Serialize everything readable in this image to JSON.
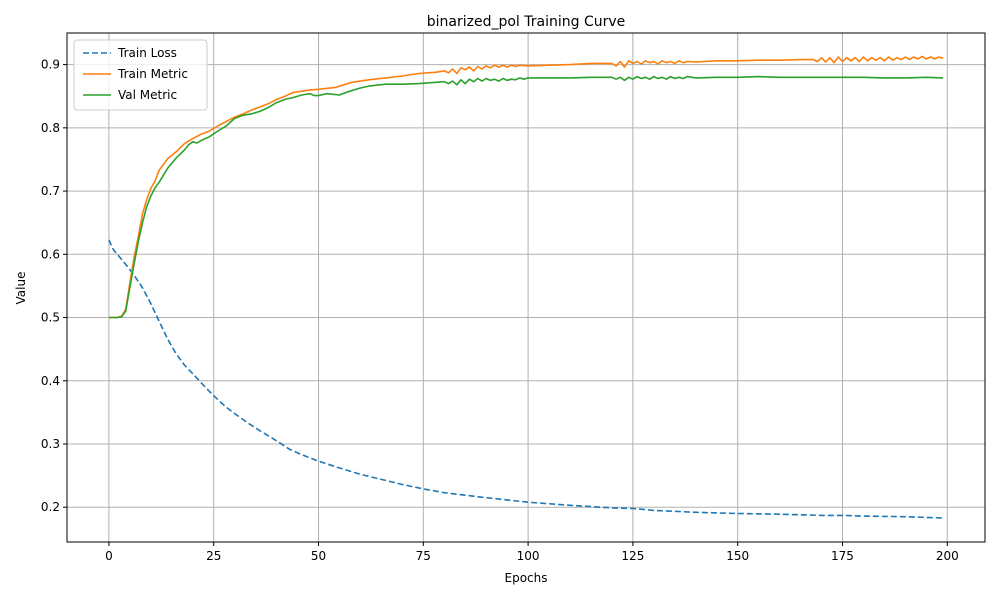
{
  "chart_data": {
    "type": "line",
    "title": "binarized_pol Training Curve",
    "xlabel": "Epochs",
    "ylabel": "Value",
    "xlim": [
      -10,
      209
    ],
    "ylim": [
      0.145,
      0.95
    ],
    "xticks": [
      0,
      25,
      50,
      75,
      100,
      125,
      150,
      175,
      200
    ],
    "yticks": [
      0.2,
      0.3,
      0.4,
      0.5,
      0.6,
      0.7,
      0.8,
      0.9
    ],
    "grid": true,
    "legend_position": "top-left",
    "series": [
      {
        "name": "Train Loss",
        "color": "#1f77b4",
        "dash": "dashed",
        "x": [
          0,
          1,
          2,
          4,
          6,
          8,
          10,
          12,
          14,
          16,
          18,
          20,
          22,
          24,
          26,
          28,
          30,
          33,
          36,
          40,
          43,
          46,
          50,
          55,
          60,
          65,
          70,
          75,
          80,
          85,
          90,
          100,
          110,
          120,
          125,
          130,
          140,
          150,
          160,
          170,
          175,
          180,
          190,
          199
        ],
        "y": [
          0.623,
          0.608,
          0.6,
          0.584,
          0.567,
          0.547,
          0.522,
          0.494,
          0.466,
          0.443,
          0.425,
          0.411,
          0.397,
          0.383,
          0.37,
          0.358,
          0.348,
          0.334,
          0.321,
          0.305,
          0.292,
          0.283,
          0.273,
          0.262,
          0.252,
          0.244,
          0.236,
          0.229,
          0.223,
          0.219,
          0.215,
          0.208,
          0.203,
          0.199,
          0.198,
          0.195,
          0.192,
          0.19,
          0.189,
          0.187,
          0.187,
          0.186,
          0.185,
          0.183
        ]
      },
      {
        "name": "Train Metric",
        "color": "#ff7f0e",
        "dash": "solid",
        "x": [
          0,
          2,
          3,
          4,
          5,
          6,
          7,
          8,
          9,
          10,
          11,
          12,
          14,
          16,
          18,
          20,
          22,
          24,
          26,
          28,
          30,
          32,
          34,
          36,
          38,
          40,
          42,
          44,
          46,
          48,
          50,
          54,
          58,
          62,
          66,
          70,
          74,
          78,
          80,
          81,
          82,
          83,
          84,
          85,
          86,
          87,
          88,
          89,
          90,
          91,
          92,
          93,
          94,
          95,
          96,
          97,
          98,
          100,
          105,
          110,
          115,
          120,
          121,
          122,
          123,
          124,
          125,
          126,
          127,
          128,
          129,
          130,
          131,
          132,
          133,
          134,
          135,
          136,
          137,
          138,
          140,
          145,
          150,
          155,
          160,
          165,
          168,
          169,
          170,
          171,
          172,
          173,
          174,
          175,
          176,
          177,
          178,
          179,
          180,
          181,
          182,
          183,
          184,
          185,
          186,
          187,
          188,
          189,
          190,
          191,
          192,
          193,
          194,
          195,
          196,
          197,
          198,
          199
        ],
        "y": [
          0.5,
          0.5,
          0.502,
          0.513,
          0.555,
          0.595,
          0.628,
          0.664,
          0.686,
          0.704,
          0.716,
          0.733,
          0.751,
          0.762,
          0.775,
          0.783,
          0.79,
          0.795,
          0.803,
          0.81,
          0.817,
          0.822,
          0.828,
          0.833,
          0.838,
          0.845,
          0.85,
          0.856,
          0.858,
          0.86,
          0.861,
          0.864,
          0.872,
          0.876,
          0.879,
          0.882,
          0.886,
          0.888,
          0.89,
          0.887,
          0.893,
          0.886,
          0.895,
          0.892,
          0.896,
          0.89,
          0.897,
          0.893,
          0.898,
          0.895,
          0.899,
          0.896,
          0.899,
          0.896,
          0.899,
          0.897,
          0.899,
          0.898,
          0.899,
          0.9,
          0.902,
          0.902,
          0.898,
          0.905,
          0.896,
          0.906,
          0.902,
          0.905,
          0.901,
          0.906,
          0.903,
          0.905,
          0.901,
          0.906,
          0.903,
          0.905,
          0.902,
          0.906,
          0.903,
          0.905,
          0.904,
          0.906,
          0.906,
          0.907,
          0.907,
          0.908,
          0.908,
          0.905,
          0.911,
          0.904,
          0.911,
          0.903,
          0.912,
          0.905,
          0.911,
          0.906,
          0.911,
          0.905,
          0.912,
          0.906,
          0.911,
          0.907,
          0.911,
          0.906,
          0.912,
          0.907,
          0.911,
          0.908,
          0.912,
          0.908,
          0.912,
          0.909,
          0.913,
          0.909,
          0.912,
          0.909,
          0.912,
          0.91
        ]
      },
      {
        "name": "Val Metric",
        "color": "#2ca02c",
        "dash": "solid",
        "x": [
          0,
          2,
          3,
          4,
          5,
          6,
          7,
          8,
          9,
          10,
          11,
          12,
          14,
          16,
          18,
          19,
          20,
          21,
          22,
          24,
          26,
          28,
          30,
          32,
          34,
          36,
          38,
          40,
          42,
          44,
          46,
          48,
          49,
          50,
          52,
          55,
          57,
          60,
          62,
          66,
          70,
          74,
          78,
          80,
          81,
          82,
          83,
          84,
          85,
          86,
          87,
          88,
          89,
          90,
          91,
          92,
          93,
          94,
          95,
          96,
          97,
          98,
          99,
          100,
          105,
          110,
          115,
          120,
          121,
          122,
          123,
          124,
          125,
          126,
          127,
          128,
          129,
          130,
          131,
          132,
          133,
          134,
          135,
          136,
          137,
          138,
          140,
          145,
          150,
          155,
          160,
          165,
          170,
          175,
          180,
          185,
          190,
          195,
          199
        ],
        "y": [
          0.5,
          0.5,
          0.501,
          0.51,
          0.548,
          0.585,
          0.62,
          0.65,
          0.675,
          0.692,
          0.705,
          0.714,
          0.736,
          0.752,
          0.765,
          0.773,
          0.778,
          0.776,
          0.78,
          0.786,
          0.795,
          0.803,
          0.815,
          0.82,
          0.822,
          0.826,
          0.832,
          0.84,
          0.845,
          0.848,
          0.852,
          0.854,
          0.851,
          0.851,
          0.854,
          0.852,
          0.857,
          0.863,
          0.866,
          0.869,
          0.869,
          0.87,
          0.872,
          0.873,
          0.87,
          0.874,
          0.868,
          0.876,
          0.87,
          0.877,
          0.873,
          0.878,
          0.874,
          0.878,
          0.875,
          0.877,
          0.874,
          0.878,
          0.875,
          0.877,
          0.876,
          0.879,
          0.877,
          0.879,
          0.879,
          0.879,
          0.88,
          0.88,
          0.877,
          0.88,
          0.875,
          0.88,
          0.877,
          0.881,
          0.878,
          0.88,
          0.877,
          0.881,
          0.878,
          0.88,
          0.877,
          0.881,
          0.878,
          0.88,
          0.878,
          0.881,
          0.879,
          0.88,
          0.88,
          0.881,
          0.88,
          0.88,
          0.88,
          0.88,
          0.88,
          0.879,
          0.879,
          0.88,
          0.879
        ]
      }
    ]
  }
}
